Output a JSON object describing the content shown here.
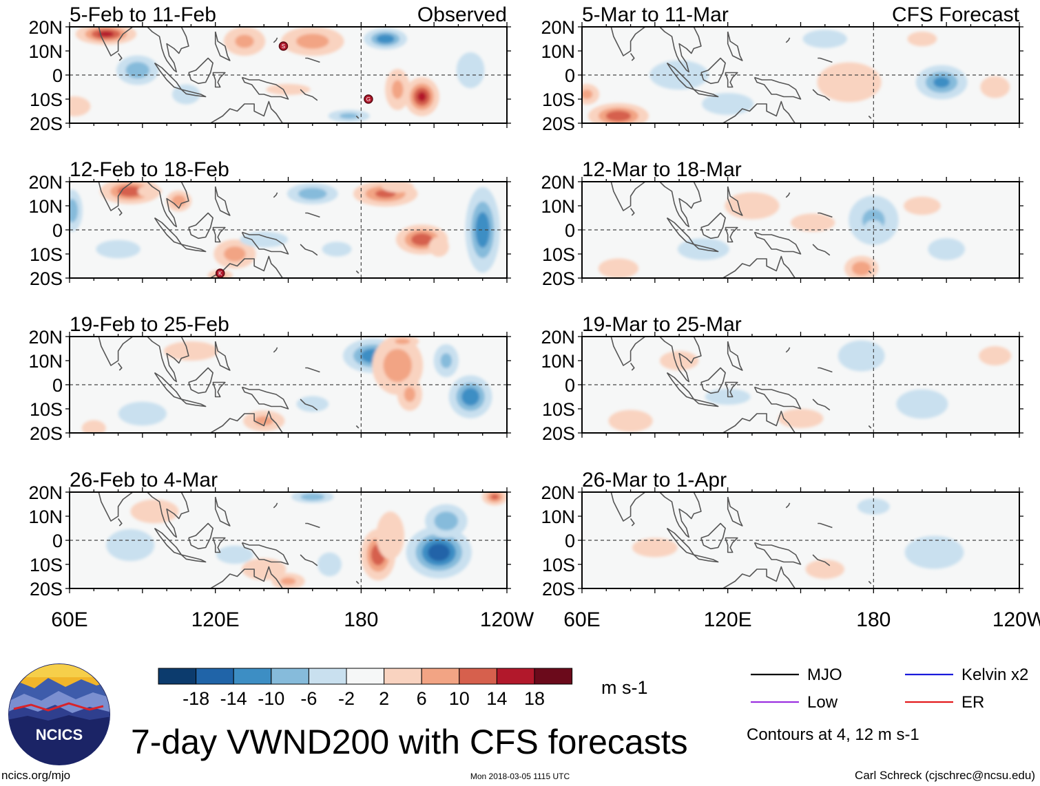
{
  "chart_data": {
    "type": "heatmap",
    "title": "7-day VWND200 with CFS forecasts",
    "variable": "VWND200",
    "units": "m s-1",
    "column_titles": {
      "observed": "Observed",
      "forecast": "CFS Forecast"
    },
    "y_ticks": [
      "20N",
      "10N",
      "0",
      "10S",
      "20S"
    ],
    "x_ticks": [
      "60E",
      "120E",
      "180",
      "120W"
    ],
    "ylim": [
      -20,
      20
    ],
    "xlim": [
      60,
      240
    ],
    "panels": [
      {
        "label": "5-Feb to 11-Feb",
        "column": "observed",
        "row": 0,
        "blobs": [
          [
            75,
            17,
            14,
            5,
            16
          ],
          [
            132,
            14,
            10,
            7,
            8
          ],
          [
            160,
            14,
            15,
            7,
            9
          ],
          [
            88,
            2,
            10,
            7,
            -10
          ],
          [
            108,
            -8,
            7,
            5,
            -6
          ],
          [
            190,
            15,
            10,
            5,
            -14
          ],
          [
            205,
            -9,
            8,
            9,
            16
          ],
          [
            195,
            -6,
            6,
            10,
            8
          ],
          [
            175,
            -17,
            10,
            3,
            -8
          ],
          [
            225,
            2,
            7,
            9,
            -6
          ],
          [
            62,
            -13,
            8,
            5,
            6
          ],
          [
            150,
            -6,
            12,
            3,
            4
          ]
        ]
      },
      {
        "label": "12-Feb to 18-Feb",
        "column": "observed",
        "row": 1,
        "blobs": [
          [
            85,
            16,
            14,
            6,
            14
          ],
          [
            93,
            16,
            6,
            3,
            6
          ],
          [
            105,
            12,
            6,
            5,
            10
          ],
          [
            190,
            15,
            15,
            6,
            12
          ],
          [
            195,
            18,
            8,
            3,
            6
          ],
          [
            205,
            -4,
            12,
            7,
            14
          ],
          [
            212,
            -7,
            5,
            5,
            6
          ],
          [
            128,
            -10,
            10,
            7,
            9
          ],
          [
            122,
            -19,
            6,
            3,
            8
          ],
          [
            61,
            8,
            5,
            10,
            -10
          ],
          [
            230,
            0,
            8,
            20,
            -14
          ],
          [
            160,
            15,
            12,
            5,
            -10
          ],
          [
            140,
            -4,
            12,
            4,
            -6
          ],
          [
            170,
            -8,
            8,
            4,
            -4
          ],
          [
            80,
            -8,
            12,
            5,
            -4
          ]
        ]
      },
      {
        "label": "19-Feb to 25-Feb",
        "column": "observed",
        "row": 2,
        "blobs": [
          [
            185,
            12,
            14,
            8,
            -14
          ],
          [
            195,
            8,
            12,
            14,
            10
          ],
          [
            200,
            -4,
            6,
            8,
            8
          ],
          [
            197,
            18,
            8,
            3,
            8
          ],
          [
            225,
            -5,
            10,
            10,
            -14
          ],
          [
            90,
            -12,
            12,
            6,
            -6
          ],
          [
            70,
            -18,
            6,
            4,
            6
          ],
          [
            140,
            -15,
            10,
            5,
            8
          ],
          [
            110,
            14,
            14,
            5,
            5
          ],
          [
            160,
            -8,
            8,
            4,
            -6
          ],
          [
            215,
            10,
            6,
            8,
            -8
          ]
        ]
      },
      {
        "label": "26-Feb to 4-Mar",
        "column": "observed",
        "row": 3,
        "blobs": [
          [
            187,
            -6,
            8,
            12,
            14
          ],
          [
            192,
            2,
            7,
            12,
            6
          ],
          [
            212,
            -5,
            15,
            12,
            -18
          ],
          [
            215,
            8,
            10,
            8,
            -10
          ],
          [
            235,
            18,
            6,
            4,
            12
          ],
          [
            160,
            18,
            10,
            3,
            -10
          ],
          [
            85,
            -2,
            12,
            8,
            -6
          ],
          [
            140,
            -12,
            12,
            6,
            4
          ],
          [
            150,
            -17,
            8,
            4,
            8
          ],
          [
            95,
            12,
            12,
            6,
            6
          ],
          [
            128,
            -6,
            10,
            5,
            -4
          ],
          [
            167,
            -10,
            6,
            6,
            -6
          ]
        ]
      },
      {
        "label": "5-Mar to 11-Mar",
        "column": "forecast",
        "row": 0,
        "blobs": [
          [
            75,
            -17,
            14,
            6,
            14
          ],
          [
            62,
            -8,
            6,
            5,
            8
          ],
          [
            208,
            -3,
            12,
            8,
            -12
          ],
          [
            170,
            -3,
            16,
            10,
            6
          ],
          [
            100,
            0,
            16,
            8,
            -4
          ],
          [
            120,
            -12,
            14,
            6,
            -4
          ],
          [
            160,
            15,
            12,
            5,
            -4
          ],
          [
            230,
            -5,
            8,
            6,
            4
          ],
          [
            200,
            15,
            8,
            4,
            4
          ]
        ]
      },
      {
        "label": "12-Mar to 18-Mar",
        "column": "forecast",
        "row": 1,
        "blobs": [
          [
            180,
            4,
            12,
            12,
            -8
          ],
          [
            180,
            1,
            5,
            4,
            -4
          ],
          [
            175,
            -16,
            8,
            6,
            10
          ],
          [
            155,
            3,
            12,
            5,
            4
          ],
          [
            75,
            -16,
            10,
            5,
            6
          ],
          [
            130,
            10,
            14,
            7,
            5
          ],
          [
            110,
            -8,
            14,
            6,
            -4
          ],
          [
            210,
            -8,
            10,
            6,
            -4
          ],
          [
            200,
            10,
            10,
            5,
            4
          ]
        ]
      },
      {
        "label": "19-Mar to 25-Mar",
        "column": "forecast",
        "row": 2,
        "blobs": [
          [
            175,
            12,
            12,
            8,
            -5
          ],
          [
            200,
            -8,
            14,
            8,
            -4
          ],
          [
            80,
            -15,
            12,
            6,
            4
          ],
          [
            150,
            -14,
            14,
            6,
            3
          ],
          [
            100,
            10,
            12,
            6,
            3
          ],
          [
            230,
            12,
            10,
            6,
            3
          ],
          [
            120,
            -5,
            14,
            5,
            -3
          ]
        ]
      },
      {
        "label": "26-Mar to 1-Apr",
        "column": "forecast",
        "row": 3,
        "blobs": [
          [
            205,
            -5,
            16,
            9,
            -4
          ],
          [
            90,
            -3,
            14,
            6,
            3
          ],
          [
            160,
            -12,
            12,
            6,
            3
          ],
          [
            180,
            14,
            10,
            5,
            -3
          ],
          [
            120,
            10,
            12,
            5,
            -2
          ]
        ]
      }
    ],
    "colorbar": {
      "tick_labels": [
        "-18",
        "-14",
        "-10",
        "-6",
        "-2",
        "2",
        "6",
        "10",
        "14",
        "18"
      ],
      "colors": [
        "#0c3b6d",
        "#2064a8",
        "#3d8ec4",
        "#86bbdb",
        "#c9e0ef",
        "#f6f7f7",
        "#f9d3c0",
        "#f2a484",
        "#d6604d",
        "#b2182b",
        "#6b0a1b"
      ]
    },
    "legend": [
      {
        "label": "MJO",
        "color": "#000000"
      },
      {
        "label": "Kelvin x2",
        "color": "#1a1adb"
      },
      {
        "label": "Low",
        "color": "#9b30e0"
      },
      {
        "label": "ER",
        "color": "#e31a1c"
      }
    ],
    "contour_note": "Contours at 4, 12 m s-1"
  },
  "footer": {
    "logo_text": "NCICS",
    "url": "ncics.org/mjo",
    "timestamp": "Mon 2018-03-05 1115 UTC",
    "credit": "Carl Schreck (cjschrec@ncsu.edu)"
  },
  "storm_labels": [
    "S",
    "G",
    "K"
  ]
}
